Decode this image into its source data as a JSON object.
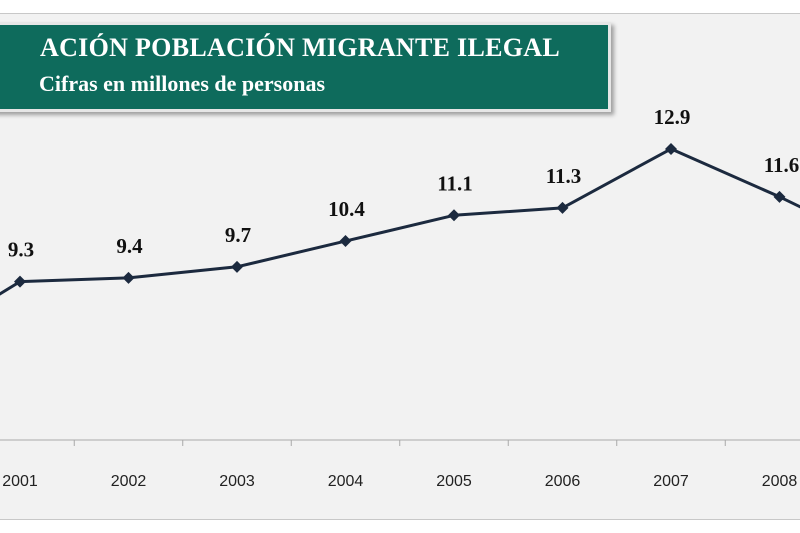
{
  "chart_data": {
    "type": "line",
    "title": "ACIÓN POBLACIÓN MIGRANTE ILEGAL",
    "subtitle": "Cifras en millones de personas",
    "xlabel": "",
    "ylabel": "",
    "categories": [
      "2001",
      "2002",
      "2003",
      "2004",
      "2005",
      "2006",
      "2007",
      "2008"
    ],
    "values": [
      9.3,
      9.4,
      9.7,
      10.4,
      11.1,
      11.3,
      12.9,
      11.6
    ],
    "data_labels": [
      "9.3",
      "9.4",
      "9.7",
      "10.4",
      "11.1",
      "11.3",
      "12.9",
      "11.6"
    ],
    "ylim": [
      5.0,
      14.5
    ],
    "grid": false,
    "line_color": "#1c2a3f",
    "marker": "diamond"
  },
  "colors": {
    "title_bg": "#0e6b5c",
    "title_text": "#ffffff",
    "plot_bg": "#f2f2f2"
  }
}
